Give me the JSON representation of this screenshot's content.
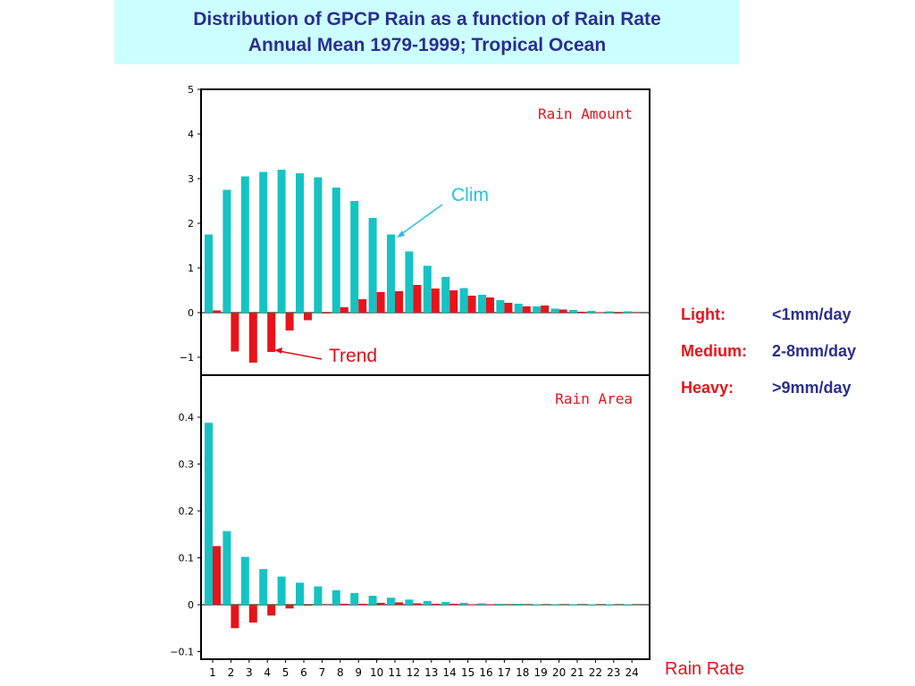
{
  "header": {
    "title_line1": "Distribution of GPCP Rain as a function of Rain Rate",
    "title_line2": "Annual Mean 1979-1999; Tropical Ocean"
  },
  "legend": [
    {
      "label": "Light:",
      "value": "<1mm/day"
    },
    {
      "label": "Medium:",
      "value": "2-8mm/day"
    },
    {
      "label": "Heavy:",
      "value": ">9mm/day"
    }
  ],
  "xaxis_title": "Rain Rate",
  "colors": {
    "clim": "#15c3c3",
    "trend": "#e8131b",
    "title_text": "#2b2f8f",
    "title_bg": "#ccffff"
  },
  "chart_data": [
    {
      "type": "bar",
      "panel_label": "Rain Amount",
      "categories": [
        "1",
        "2",
        "3",
        "4",
        "5",
        "6",
        "7",
        "8",
        "9",
        "10",
        "11",
        "12",
        "13",
        "14",
        "15",
        "16",
        "17",
        "18",
        "19",
        "20",
        "21",
        "22",
        "23",
        "24"
      ],
      "ylim": [
        -1.4,
        5
      ],
      "yticks": [
        -1,
        0,
        1,
        2,
        3,
        4,
        5
      ],
      "ytick_labels": [
        "-1",
        "0",
        "1",
        "2",
        "3",
        "4",
        "5"
      ],
      "annotations": [
        {
          "text": "Clim",
          "series": "clim"
        },
        {
          "text": "Trend",
          "series": "trend"
        }
      ],
      "series": [
        {
          "key": "clim",
          "values": [
            1.75,
            2.75,
            3.05,
            3.15,
            3.2,
            3.12,
            3.03,
            2.8,
            2.5,
            2.12,
            1.75,
            1.37,
            1.05,
            0.8,
            0.55,
            0.4,
            0.28,
            0.2,
            0.14,
            0.09,
            0.06,
            0.04,
            0.03,
            0.03
          ]
        },
        {
          "key": "trend",
          "values": [
            0.05,
            -0.87,
            -1.12,
            -0.88,
            -0.4,
            -0.17,
            -0.02,
            0.12,
            0.3,
            0.46,
            0.48,
            0.62,
            0.54,
            0.5,
            0.38,
            0.34,
            0.22,
            0.14,
            0.16,
            0.07,
            0.02,
            0.01,
            -0.02,
            0.0
          ]
        }
      ]
    },
    {
      "type": "bar",
      "panel_label": "Rain Area",
      "categories": [
        "1",
        "2",
        "3",
        "4",
        "5",
        "6",
        "7",
        "8",
        "9",
        "10",
        "11",
        "12",
        "13",
        "14",
        "15",
        "16",
        "17",
        "18",
        "19",
        "20",
        "21",
        "22",
        "23",
        "24"
      ],
      "ylim": [
        -0.12,
        0.5
      ],
      "yticks": [
        -0.1,
        0,
        0.1,
        0.2,
        0.3,
        0.4
      ],
      "ytick_labels": [
        "-0.1",
        "0",
        "0.1",
        "0.2",
        "0.3",
        "0.4"
      ],
      "series": [
        {
          "key": "clim",
          "values": [
            0.388,
            0.157,
            0.102,
            0.076,
            0.06,
            0.047,
            0.039,
            0.031,
            0.025,
            0.019,
            0.015,
            0.011,
            0.008,
            0.006,
            0.004,
            0.003,
            0.002,
            0.002,
            0.001,
            0.001,
            0.001,
            0.001,
            0.001,
            0.001
          ]
        },
        {
          "key": "trend",
          "values": [
            0.125,
            -0.05,
            -0.038,
            -0.023,
            -0.008,
            -0.002,
            0.0,
            0.002,
            0.002,
            0.004,
            0.005,
            0.003,
            0.002,
            0.002,
            0.001,
            0.001,
            0.0,
            0.0,
            0.0,
            0.0,
            0.0,
            0.0,
            0.0,
            0.0
          ]
        }
      ]
    }
  ]
}
